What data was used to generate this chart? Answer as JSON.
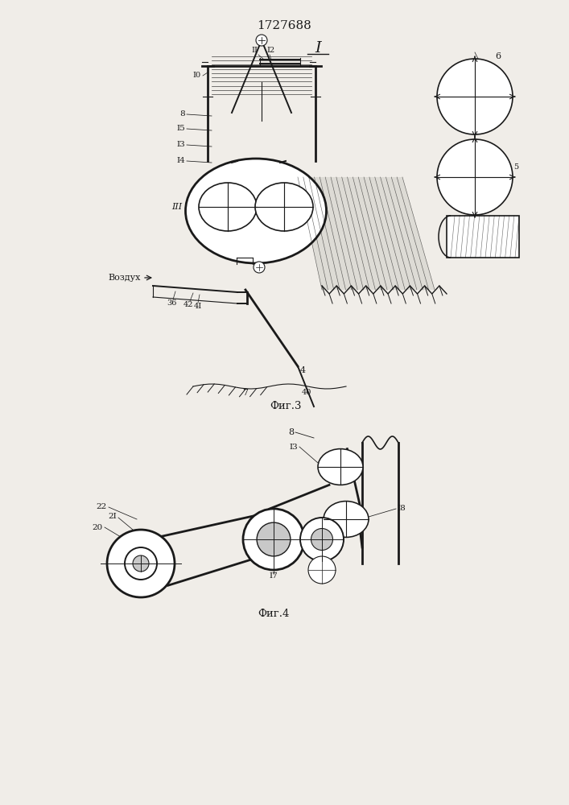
{
  "patent_number": "1727688",
  "fig1_label": "I",
  "fig3_caption": "Фиг.3",
  "fig4_caption": "Фиг.4",
  "vozduh_label": "воздух",
  "background_color": "#f0ede8",
  "line_color": "#1a1a1a",
  "lw_main": 1.4,
  "lw_thin": 0.8,
  "lw_thick": 2.0
}
